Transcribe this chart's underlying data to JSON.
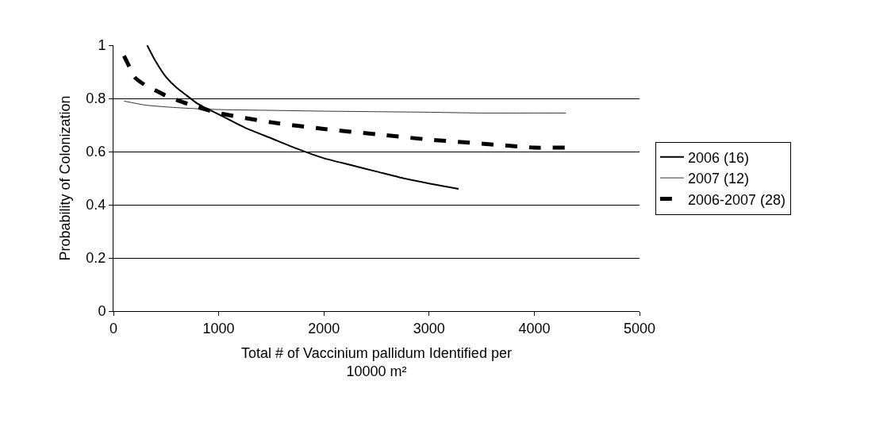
{
  "chart_data": {
    "type": "line",
    "xlabel": "Total # of Vaccinium pallidum Identified per 10000 m²",
    "ylabel": "Probability of Colonization",
    "xlim": [
      0,
      5000
    ],
    "xticks": [
      0,
      1000,
      2000,
      3000,
      4000,
      5000
    ],
    "ylim": [
      0,
      1
    ],
    "yticks": [
      0,
      0.2,
      0.4,
      0.6,
      0.8,
      1
    ],
    "grid": "y",
    "legend": "right",
    "series": [
      {
        "name": "2006 (16)",
        "color": "#000000",
        "x": [
          320,
          400,
          500,
          600,
          700,
          800,
          1000,
          1250,
          1500,
          1750,
          2000,
          2250,
          2500,
          2750,
          3000,
          3280
        ],
        "values": [
          1,
          0.94,
          0.88,
          0.84,
          0.81,
          0.78,
          0.74,
          0.69,
          0.65,
          0.61,
          0.575,
          0.55,
          0.525,
          0.5,
          0.48,
          0.46
        ]
      },
      {
        "name": "2007 (12)",
        "color": "#000000",
        "x": [
          100,
          300,
          500,
          700,
          1000,
          1500,
          2000,
          2500,
          3000,
          3500,
          4000,
          4300
        ],
        "values": [
          0.79,
          0.775,
          0.768,
          0.763,
          0.758,
          0.755,
          0.752,
          0.75,
          0.748,
          0.745,
          0.745,
          0.745
        ]
      },
      {
        "name": "2006-2007 (28)",
        "color": "#000000",
        "line_style": "dashed",
        "x": [
          100,
          150,
          200,
          300,
          400,
          500,
          700,
          1000,
          1500,
          2000,
          2500,
          3000,
          3500,
          4000,
          4300
        ],
        "values": [
          0.96,
          0.92,
          0.88,
          0.85,
          0.83,
          0.81,
          0.78,
          0.745,
          0.71,
          0.685,
          0.665,
          0.645,
          0.63,
          0.615,
          0.615
        ]
      }
    ]
  }
}
